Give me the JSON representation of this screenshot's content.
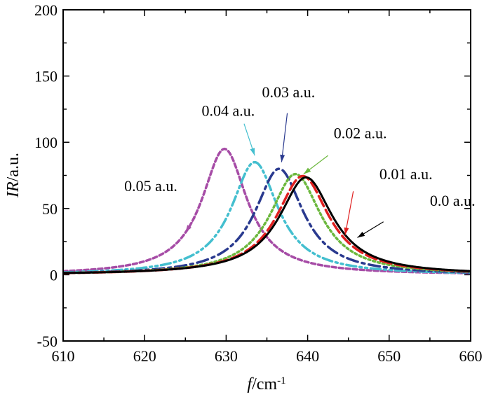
{
  "chart_data": {
    "type": "line",
    "xlabel": {
      "italic": "f",
      "rest": "/cm",
      "sup": "-1"
    },
    "ylabel": {
      "italic": "IR",
      "rest": "/a.u."
    },
    "xlim": [
      610,
      660
    ],
    "ylim": [
      -50,
      200
    ],
    "xticks": [
      610,
      620,
      630,
      640,
      650,
      660
    ],
    "yticks": [
      -50,
      0,
      50,
      100,
      150,
      200
    ],
    "grid": false,
    "series": [
      {
        "name": "0.05 a.u.",
        "peak_x": 629.8,
        "peak_y": 95,
        "gamma": 3.4,
        "color": "#a64ca6",
        "dash": "6,4",
        "width": 3.5,
        "points": [
          [
            610,
            3.3
          ],
          [
            620,
            10.2
          ],
          [
            625,
            30.2
          ],
          [
            628,
            73.0
          ],
          [
            629.8,
            95
          ],
          [
            632,
            67.2
          ],
          [
            635,
            28.6
          ],
          [
            640,
            9.7
          ],
          [
            650,
            2.7
          ],
          [
            660,
            1.3
          ]
        ]
      },
      {
        "name": "0.04 a.u.",
        "peak_x": 633.5,
        "peak_y": 85,
        "gamma": 3.5,
        "color": "#44bfcf",
        "dash": "14,5,3,5,3,5",
        "width": 3.5,
        "points": [
          [
            610,
            2.1
          ],
          [
            620,
            5.1
          ],
          [
            630,
            42.2
          ],
          [
            633.5,
            85
          ],
          [
            636,
            56.6
          ],
          [
            640,
            19.5
          ],
          [
            645,
            7.4
          ],
          [
            650,
            3.7
          ],
          [
            660,
            1.5
          ]
        ]
      },
      {
        "name": "0.03 a.u.",
        "peak_x": 636.5,
        "peak_y": 80,
        "gamma": 3.6,
        "color": "#2a3a8f",
        "dash": "16,6,4,6",
        "width": 3.5,
        "points": [
          [
            610,
            1.5
          ],
          [
            620,
            3.6
          ],
          [
            630,
            18.3
          ],
          [
            636.5,
            80
          ],
          [
            640,
            41.1
          ],
          [
            645,
            12.8
          ],
          [
            650,
            5.0
          ],
          [
            660,
            1.8
          ]
        ]
      },
      {
        "name": "0.02 a.u.",
        "peak_x": 638.5,
        "peak_y": 76,
        "gamma": 3.8,
        "color": "#6cb83e",
        "dash": "3,4",
        "width": 3.5,
        "points": [
          [
            610,
            1.3
          ],
          [
            620,
            3.1
          ],
          [
            630,
            12.3
          ],
          [
            638.5,
            76
          ],
          [
            642,
            41.0
          ],
          [
            645,
            19.4
          ],
          [
            650,
            7.4
          ],
          [
            660,
            2.3
          ]
        ]
      },
      {
        "name": "0.01 a.u.",
        "peak_x": 639.4,
        "peak_y": 74.5,
        "gamma": 3.9,
        "color": "#e02020",
        "dash": "16,6",
        "width": 3.5,
        "points": [
          [
            610,
            1.3
          ],
          [
            620,
            2.9
          ],
          [
            630,
            10.0
          ],
          [
            639.4,
            74.5
          ],
          [
            642,
            51.8
          ],
          [
            645,
            24.5
          ],
          [
            650,
            8.5
          ],
          [
            660,
            2.6
          ]
        ]
      },
      {
        "name": "0.0 a.u.",
        "peak_x": 639.8,
        "peak_y": 73.5,
        "gamma": 4.0,
        "color": "#000000",
        "dash": "",
        "width": 3,
        "points": [
          [
            610,
            1.3
          ],
          [
            620,
            2.9
          ],
          [
            630,
            9.3
          ],
          [
            639.8,
            73.5
          ],
          [
            642,
            56.3
          ],
          [
            645,
            27.5
          ],
          [
            650,
            9.7
          ],
          [
            660,
            2.8
          ]
        ]
      }
    ],
    "annotations": [
      {
        "text": "0.05 a.u.",
        "tx": 617.5,
        "ty": 63,
        "ax0": 626.2,
        "ay0": 43,
        "ax1": 625.0,
        "ay1": 32
      },
      {
        "text": "0.04 a.u.",
        "tx": 627.0,
        "ty": 120,
        "ax0": 632.2,
        "ay0": 114,
        "ax1": 633.5,
        "ay1": 90
      },
      {
        "text": "0.03 a.u.",
        "tx": 634.4,
        "ty": 134,
        "ax0": 637.5,
        "ay0": 122,
        "ax1": 636.8,
        "ay1": 85
      },
      {
        "text": "0.02 a.u.",
        "tx": 643.2,
        "ty": 103,
        "ax0": 642.5,
        "ay0": 90,
        "ax1": 639.5,
        "ay1": 76
      },
      {
        "text": "0.01 a.u.",
        "tx": 648.8,
        "ty": 72,
        "ax0": 645.6,
        "ay0": 63,
        "ax1": 644.6,
        "ay1": 30
      },
      {
        "text": "0.0 a.u.",
        "tx": 655.0,
        "ty": 52,
        "ax0": 649.3,
        "ay0": 40,
        "ax1": 646.1,
        "ay1": 28
      }
    ]
  }
}
